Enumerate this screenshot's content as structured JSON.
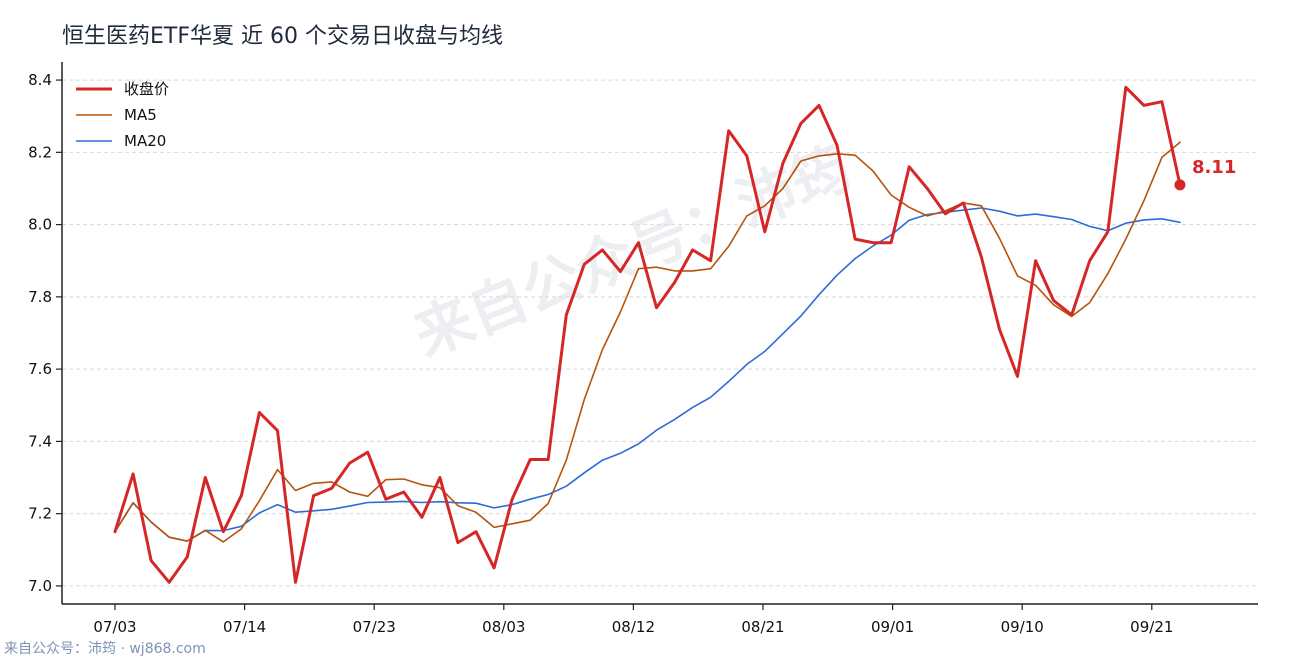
{
  "title": "恒生医药ETF华夏 近 60 个交易日收盘与均线",
  "footer": "来自公众号：沛筠 · wj868.com",
  "watermark": "来自公众号：沛筠",
  "chart_data": {
    "type": "line",
    "x_labels_shown": [
      "07/03",
      "07/14",
      "07/23",
      "08/03",
      "08/12",
      "08/21",
      "09/01",
      "09/10",
      "09/21"
    ],
    "ylim": [
      6.95,
      8.45
    ],
    "yticks": [
      "7.0",
      "7.2",
      "7.4",
      "7.6",
      "7.8",
      "8.0",
      "8.2",
      "8.4"
    ],
    "grid": "horizontal dashed",
    "legend_position": "top-left",
    "last_value_label": "8.11",
    "series": [
      {
        "name": "收盘价",
        "color": "#d62728",
        "values": [
          7.15,
          7.31,
          7.07,
          7.01,
          7.08,
          7.3,
          7.15,
          7.25,
          7.48,
          7.43,
          7.01,
          7.25,
          7.27,
          7.34,
          7.37,
          7.24,
          7.26,
          7.19,
          7.3,
          7.12,
          7.15,
          7.05,
          7.24,
          7.35,
          7.35,
          7.75,
          7.89,
          7.93,
          7.87,
          7.95,
          7.77,
          7.84,
          7.93,
          7.9,
          8.26,
          8.19,
          7.98,
          8.17,
          8.28,
          8.33,
          8.22,
          7.96,
          7.95,
          7.95,
          8.16,
          8.1,
          8.03,
          8.06,
          7.91,
          7.71,
          7.58,
          7.9,
          7.79,
          7.75,
          7.9,
          7.98,
          8.38,
          8.33,
          8.34,
          8.11
        ]
      },
      {
        "name": "MA5",
        "color": "#b5540c",
        "values": [
          7.15,
          7.23,
          7.177,
          7.135,
          7.124,
          7.154,
          7.122,
          7.158,
          7.236,
          7.322,
          7.264,
          7.284,
          7.288,
          7.26,
          7.248,
          7.294,
          7.296,
          7.28,
          7.272,
          7.222,
          7.204,
          7.162,
          7.172,
          7.182,
          7.228,
          7.348,
          7.516,
          7.654,
          7.758,
          7.878,
          7.882,
          7.872,
          7.872,
          7.878,
          7.94,
          8.024,
          8.052,
          8.1,
          8.176,
          8.19,
          8.196,
          8.192,
          8.148,
          8.082,
          8.048,
          8.024,
          8.038,
          8.06,
          8.052,
          7.962,
          7.858,
          7.832,
          7.778,
          7.746,
          7.784,
          7.864,
          7.96,
          8.066,
          8.186,
          8.228
        ]
      },
      {
        "name": "MA20",
        "color": "#2e6bd9",
        "values": [
          7.15,
          7.23,
          7.177,
          7.135,
          7.124,
          7.153,
          7.153,
          7.165,
          7.202,
          7.225,
          7.204,
          7.208,
          7.212,
          7.221,
          7.231,
          7.232,
          7.234,
          7.231,
          7.233,
          7.23,
          7.229,
          7.216,
          7.225,
          7.24,
          7.253,
          7.276,
          7.313,
          7.348,
          7.367,
          7.393,
          7.431,
          7.461,
          7.494,
          7.522,
          7.566,
          7.613,
          7.649,
          7.698,
          7.747,
          7.806,
          7.86,
          7.906,
          7.941,
          7.971,
          8.012,
          8.028,
          8.034,
          8.04,
          8.046,
          8.037,
          8.024,
          8.029,
          8.022,
          8.014,
          7.995,
          7.983,
          8.004,
          8.013,
          8.016,
          8.006
        ]
      }
    ]
  }
}
